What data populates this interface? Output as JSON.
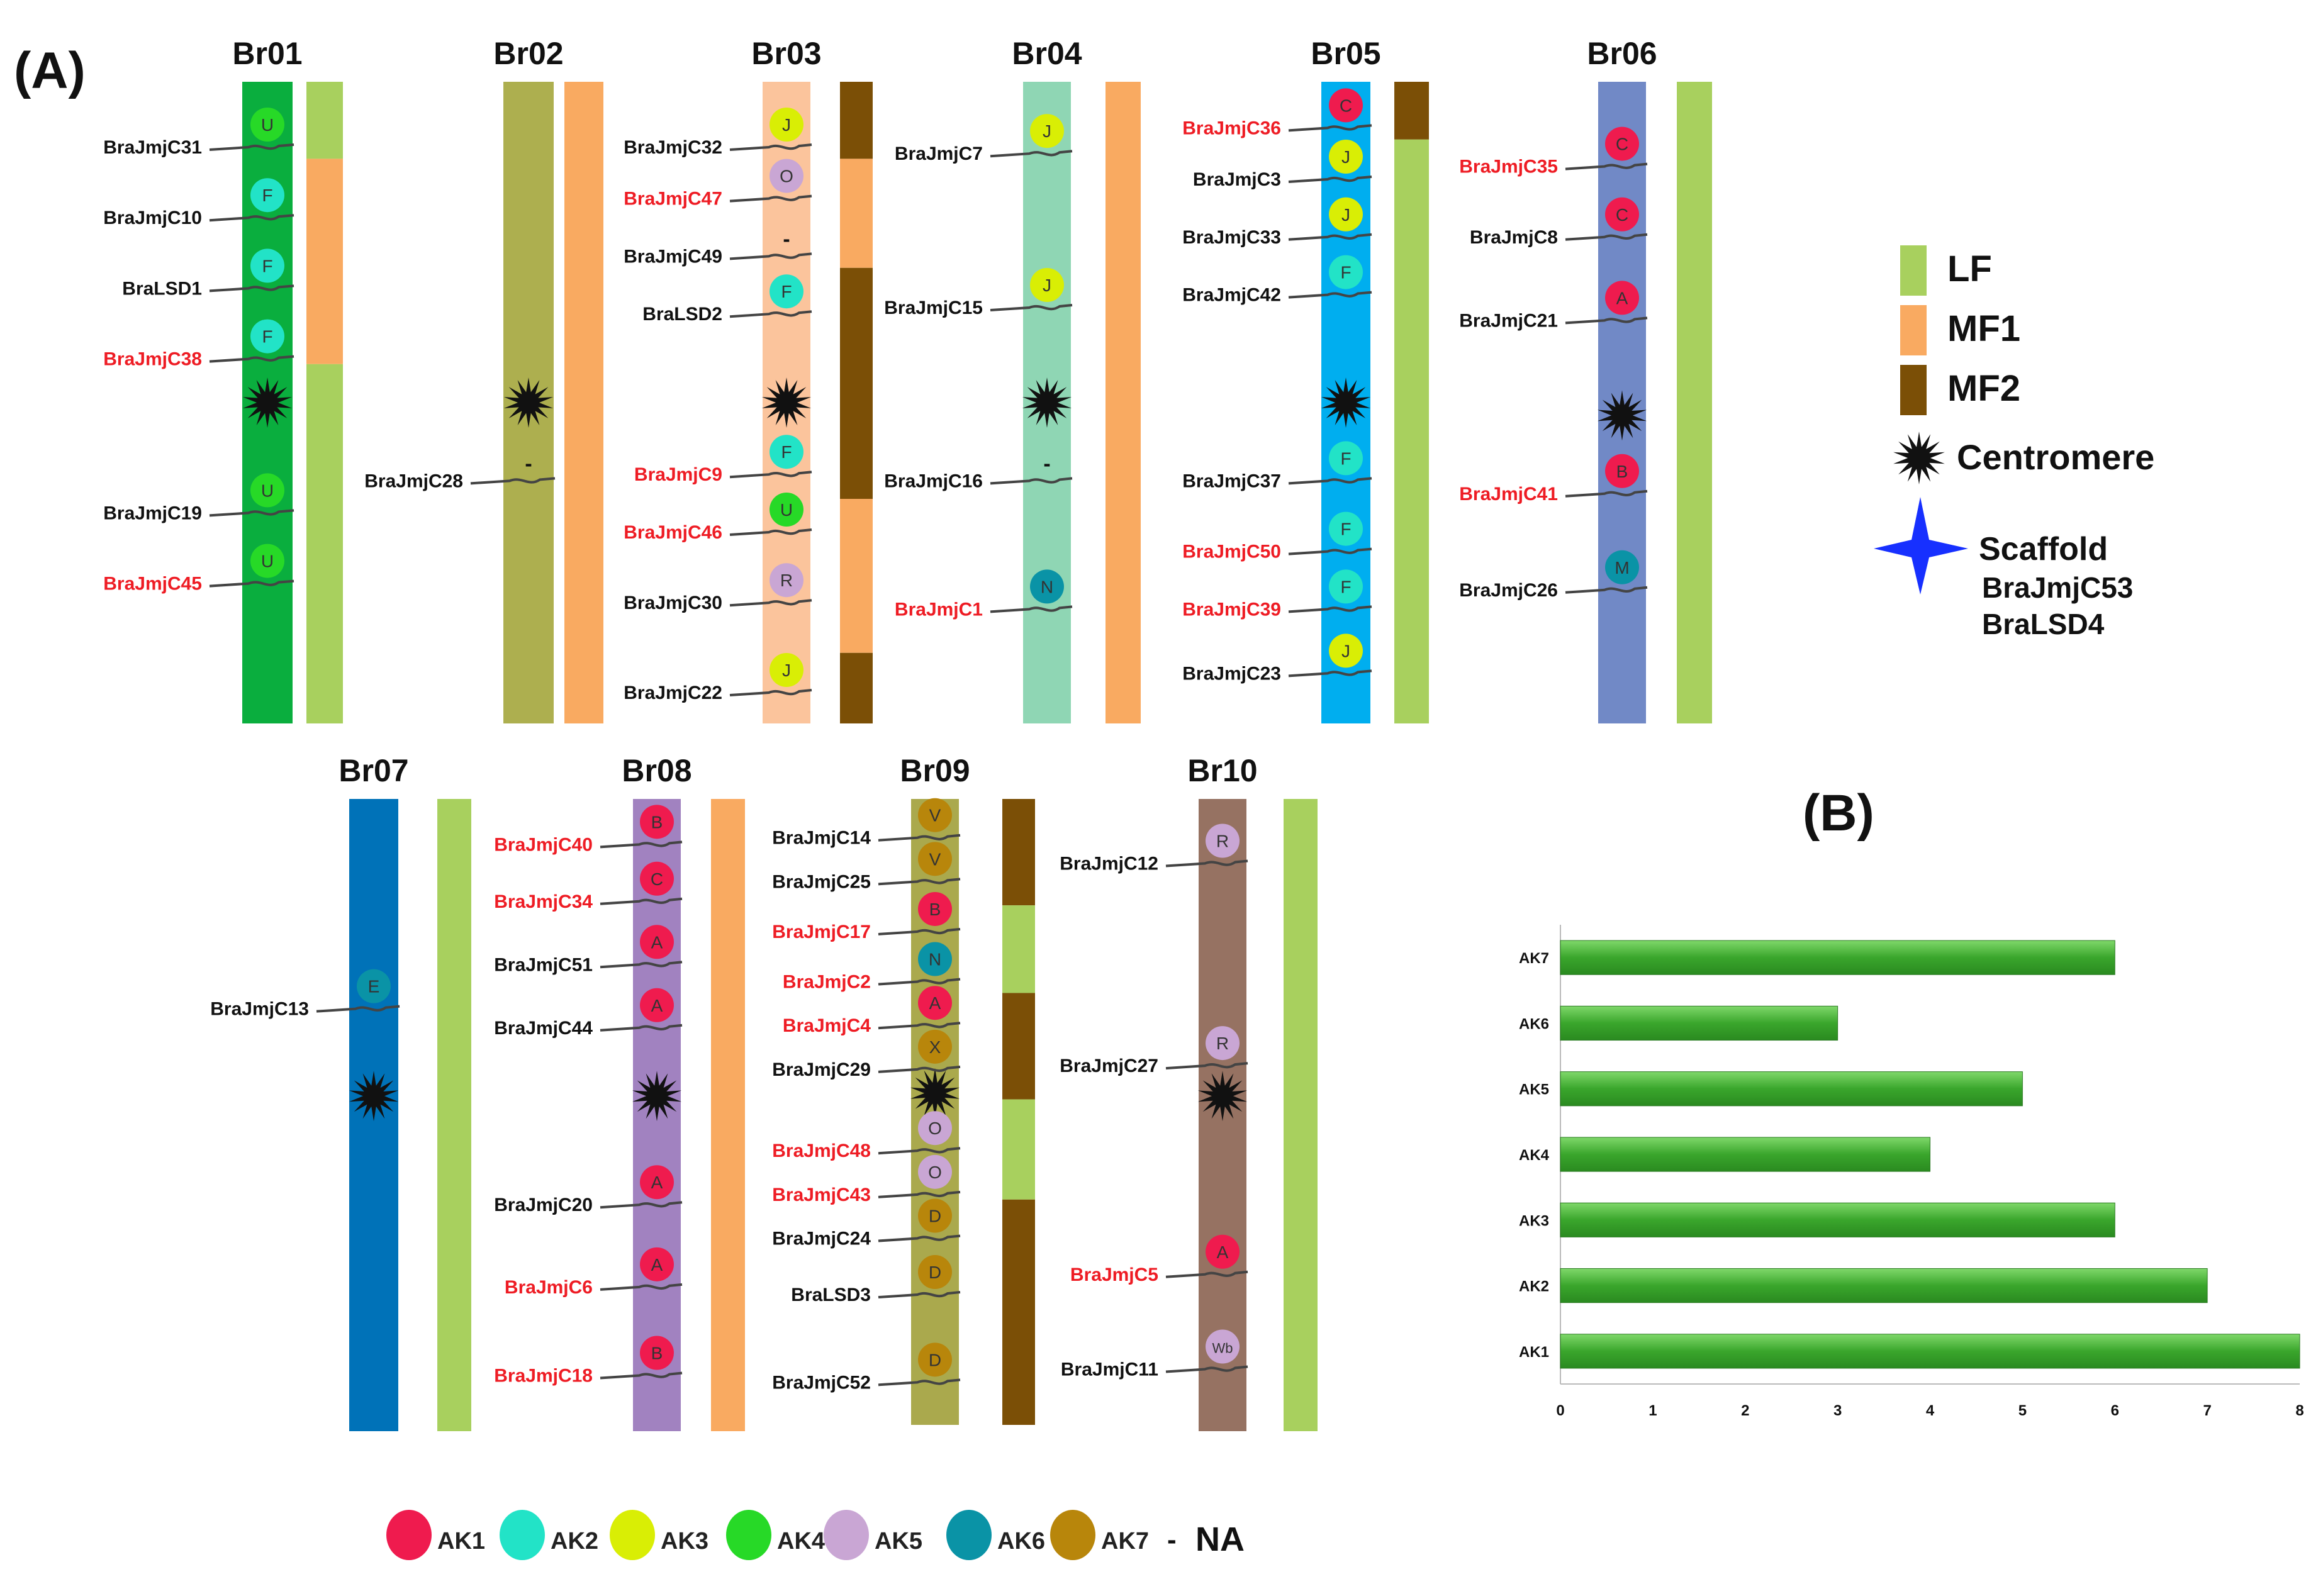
{
  "panel_a_label": "(A)",
  "panel_b_label": "(B)",
  "colors": {
    "LF": "#a8d05e",
    "MF1": "#f9aa61",
    "MF2": "#7b4f06",
    "AK1": "#ef1b4e",
    "AK2": "#22e3c7",
    "AK3": "#d9ee05",
    "AK4": "#27d927",
    "AK5": "#c9a6d4",
    "AK6": "#0a93a6",
    "AK7": "#b8860b",
    "red_label": "#ee1c24",
    "black_label": "#111111",
    "scaffold": "#1730ff",
    "bar_green": "#44a832"
  },
  "chromosomes": [
    {
      "name": "Br01",
      "color": "#0aae3e",
      "genes": [
        {
          "pos": 0.1,
          "label": "BraJmjC31",
          "red": false,
          "ak": "AK4",
          "letter": "U"
        },
        {
          "pos": 0.21,
          "label": "BraJmjC10",
          "red": false,
          "ak": "AK2",
          "letter": "F"
        },
        {
          "pos": 0.32,
          "label": "BraLSD1",
          "red": false,
          "ak": "AK2",
          "letter": "F"
        },
        {
          "pos": 0.43,
          "label": "BraJmjC38",
          "red": true,
          "ak": "AK2",
          "letter": "F"
        },
        {
          "pos": 0.67,
          "label": "BraJmjC19",
          "red": false,
          "ak": "AK4",
          "letter": "U"
        },
        {
          "pos": 0.78,
          "label": "BraJmjC45",
          "red": true,
          "ak": "AK4",
          "letter": "U"
        }
      ],
      "centromere": 0.5,
      "segments": [
        {
          "type": "LF",
          "from": 0,
          "to": 0.12
        },
        {
          "type": "MF1",
          "from": 0.12,
          "to": 0.44
        },
        {
          "type": "LF",
          "from": 0.44,
          "to": 1
        }
      ]
    },
    {
      "name": "Br02",
      "color": "#adaf4f",
      "genes": [
        {
          "pos": 0.62,
          "label": "BraJmjC28",
          "red": false,
          "ak": "NA",
          "letter": "-"
        }
      ],
      "centromere": 0.5,
      "segments": [
        {
          "type": "MF1",
          "from": 0,
          "to": 1
        }
      ]
    },
    {
      "name": "Br03",
      "color": "#fbc49c",
      "genes": [
        {
          "pos": 0.1,
          "label": "BraJmjC32",
          "red": false,
          "ak": "AK3",
          "letter": "J"
        },
        {
          "pos": 0.18,
          "label": "BraJmjC47",
          "red": true,
          "ak": "AK5",
          "letter": "O"
        },
        {
          "pos": 0.27,
          "label": "BraJmjC49",
          "red": false,
          "ak": "NA",
          "letter": "-"
        },
        {
          "pos": 0.36,
          "label": "BraLSD2",
          "red": false,
          "ak": "AK2",
          "letter": "F"
        },
        {
          "pos": 0.61,
          "label": "BraJmjC9",
          "red": true,
          "ak": "AK2",
          "letter": "F"
        },
        {
          "pos": 0.7,
          "label": "BraJmjC46",
          "red": true,
          "ak": "AK4",
          "letter": "U"
        },
        {
          "pos": 0.81,
          "label": "BraJmjC30",
          "red": false,
          "ak": "AK5",
          "letter": "R"
        },
        {
          "pos": 0.95,
          "label": "BraJmjC22",
          "red": false,
          "ak": "AK3",
          "letter": "J"
        }
      ],
      "centromere": 0.5,
      "segments": [
        {
          "type": "MF2",
          "from": 0,
          "to": 0.12
        },
        {
          "type": "MF1",
          "from": 0.12,
          "to": 0.29
        },
        {
          "type": "MF2",
          "from": 0.29,
          "to": 0.65
        },
        {
          "type": "MF1",
          "from": 0.65,
          "to": 0.89
        },
        {
          "type": "MF2",
          "from": 0.89,
          "to": 1
        }
      ]
    },
    {
      "name": "Br04",
      "color": "#8fd6b4",
      "genes": [
        {
          "pos": 0.11,
          "label": "BraJmjC7",
          "red": false,
          "ak": "AK3",
          "letter": "J"
        },
        {
          "pos": 0.35,
          "label": "BraJmjC15",
          "red": false,
          "ak": "AK3",
          "letter": "J"
        },
        {
          "pos": 0.62,
          "label": "BraJmjC16",
          "red": false,
          "ak": "NA",
          "letter": "-"
        },
        {
          "pos": 0.82,
          "label": "BraJmjC1",
          "red": true,
          "ak": "AK6",
          "letter": "N"
        }
      ],
      "centromere": 0.5,
      "segments": [
        {
          "type": "MF1",
          "from": 0,
          "to": 1
        }
      ]
    },
    {
      "name": "Br05",
      "color": "#00aeef",
      "genes": [
        {
          "pos": 0.07,
          "label": "BraJmjC36",
          "red": true,
          "ak": "AK1",
          "letter": "C"
        },
        {
          "pos": 0.15,
          "label": "BraJmjC3",
          "red": false,
          "ak": "AK3",
          "letter": "J"
        },
        {
          "pos": 0.24,
          "label": "BraJmjC33",
          "red": false,
          "ak": "AK3",
          "letter": "J"
        },
        {
          "pos": 0.33,
          "label": "BraJmjC42",
          "red": false,
          "ak": "AK2",
          "letter": "F"
        },
        {
          "pos": 0.62,
          "label": "BraJmjC37",
          "red": false,
          "ak": "AK2",
          "letter": "F"
        },
        {
          "pos": 0.73,
          "label": "BraJmjC50",
          "red": true,
          "ak": "AK2",
          "letter": "F"
        },
        {
          "pos": 0.82,
          "label": "BraJmjC39",
          "red": true,
          "ak": "AK2",
          "letter": "F"
        },
        {
          "pos": 0.92,
          "label": "BraJmjC23",
          "red": false,
          "ak": "AK3",
          "letter": "J"
        }
      ],
      "centromere": 0.5,
      "segments": [
        {
          "type": "MF2",
          "from": 0,
          "to": 0.09
        },
        {
          "type": "LF",
          "from": 0.09,
          "to": 1
        }
      ]
    },
    {
      "name": "Br06",
      "color": "#7189c6",
      "genes": [
        {
          "pos": 0.13,
          "label": "BraJmjC35",
          "red": true,
          "ak": "AK1",
          "letter": "C"
        },
        {
          "pos": 0.24,
          "label": "BraJmjC8",
          "red": false,
          "ak": "AK1",
          "letter": "C"
        },
        {
          "pos": 0.37,
          "label": "BraJmjC21",
          "red": false,
          "ak": "AK1",
          "letter": "A"
        },
        {
          "pos": 0.64,
          "label": "BraJmjC41",
          "red": true,
          "ak": "AK1",
          "letter": "B"
        },
        {
          "pos": 0.79,
          "label": "BraJmjC26",
          "red": false,
          "ak": "AK6",
          "letter": "M"
        }
      ],
      "centromere": 0.52,
      "segments": [
        {
          "type": "LF",
          "from": 0,
          "to": 1
        }
      ]
    },
    {
      "name": "Br07",
      "color": "#0072b8",
      "genes": [
        {
          "pos": 0.33,
          "label": "BraJmjC13",
          "red": false,
          "ak": "AK6",
          "letter": "E"
        }
      ],
      "centromere": 0.47,
      "segments": [
        {
          "type": "LF",
          "from": 0,
          "to": 1
        }
      ]
    },
    {
      "name": "Br08",
      "color": "#a182c0",
      "genes": [
        {
          "pos": 0.07,
          "label": "BraJmjC40",
          "red": true,
          "ak": "AK1",
          "letter": "B"
        },
        {
          "pos": 0.16,
          "label": "BraJmjC34",
          "red": true,
          "ak": "AK1",
          "letter": "C"
        },
        {
          "pos": 0.26,
          "label": "BraJmjC51",
          "red": false,
          "ak": "AK1",
          "letter": "A"
        },
        {
          "pos": 0.36,
          "label": "BraJmjC44",
          "red": false,
          "ak": "AK1",
          "letter": "A"
        },
        {
          "pos": 0.64,
          "label": "BraJmjC20",
          "red": false,
          "ak": "AK1",
          "letter": "A"
        },
        {
          "pos": 0.77,
          "label": "BraJmjC6",
          "red": true,
          "ak": "AK1",
          "letter": "A"
        },
        {
          "pos": 0.91,
          "label": "BraJmjC18",
          "red": true,
          "ak": "AK1",
          "letter": "B"
        }
      ],
      "centromere": 0.47,
      "segments": [
        {
          "type": "MF1",
          "from": 0,
          "to": 1
        }
      ]
    },
    {
      "name": "Br09",
      "color": "#aaa94d",
      "genes": [
        {
          "pos": 0.06,
          "label": "BraJmjC14",
          "red": false,
          "ak": "AK7",
          "letter": "V"
        },
        {
          "pos": 0.13,
          "label": "BraJmjC25",
          "red": false,
          "ak": "AK7",
          "letter": "V"
        },
        {
          "pos": 0.21,
          "label": "BraJmjC17",
          "red": true,
          "ak": "AK1",
          "letter": "B"
        },
        {
          "pos": 0.29,
          "label": "BraJmjC2",
          "red": true,
          "ak": "AK6",
          "letter": "N"
        },
        {
          "pos": 0.36,
          "label": "BraJmjC4",
          "red": true,
          "ak": "AK1",
          "letter": "A"
        },
        {
          "pos": 0.43,
          "label": "BraJmjC29",
          "red": false,
          "ak": "AK7",
          "letter": "X"
        },
        {
          "pos": 0.56,
          "label": "BraJmjC48",
          "red": true,
          "ak": "AK5",
          "letter": "O"
        },
        {
          "pos": 0.63,
          "label": "BraJmjC43",
          "red": true,
          "ak": "AK5",
          "letter": "O"
        },
        {
          "pos": 0.7,
          "label": "BraJmjC24",
          "red": false,
          "ak": "AK7",
          "letter": "D"
        },
        {
          "pos": 0.79,
          "label": "BraLSD3",
          "red": false,
          "ak": "AK7",
          "letter": "D"
        },
        {
          "pos": 0.93,
          "label": "BraJmjC52",
          "red": false,
          "ak": "AK7",
          "letter": "D"
        }
      ],
      "centromere": 0.47,
      "segments": [
        {
          "type": "MF2",
          "from": 0,
          "to": 0.17
        },
        {
          "type": "LF",
          "from": 0.17,
          "to": 0.31
        },
        {
          "type": "MF2",
          "from": 0.31,
          "to": 0.48
        },
        {
          "type": "LF",
          "from": 0.48,
          "to": 0.64
        },
        {
          "type": "MF2",
          "from": 0.64,
          "to": 1
        }
      ]
    },
    {
      "name": "Br10",
      "color": "#967262",
      "genes": [
        {
          "pos": 0.1,
          "label": "BraJmjC12",
          "red": false,
          "ak": "AK5",
          "letter": "R"
        },
        {
          "pos": 0.42,
          "label": "BraJmjC27",
          "red": false,
          "ak": "AK5",
          "letter": "R"
        },
        {
          "pos": 0.75,
          "label": "BraJmjC5",
          "red": true,
          "ak": "AK1",
          "letter": "A"
        },
        {
          "pos": 0.9,
          "label": "BraJmjC11",
          "red": false,
          "ak": "AK5",
          "letter": "Wb"
        }
      ],
      "centromere": 0.47,
      "segments": [
        {
          "type": "LF",
          "from": 0,
          "to": 1
        }
      ]
    }
  ],
  "legend_types": [
    {
      "key": "LF",
      "label": "LF"
    },
    {
      "key": "MF1",
      "label": "MF1"
    },
    {
      "key": "MF2",
      "label": "MF2"
    }
  ],
  "legend_centromere_label": "Centromere",
  "legend_scaffold_label": "Scaffold",
  "scaffold_genes": [
    "BraJmjC53",
    "BraLSD4"
  ],
  "ak_legend": [
    {
      "key": "AK1",
      "label": "AK1"
    },
    {
      "key": "AK2",
      "label": "AK2"
    },
    {
      "key": "AK3",
      "label": "AK3"
    },
    {
      "key": "AK4",
      "label": "AK4"
    },
    {
      "key": "AK5",
      "label": "AK5"
    },
    {
      "key": "AK6",
      "label": "AK6"
    },
    {
      "key": "AK7",
      "label": "AK7"
    }
  ],
  "na_dash": "-",
  "na_label": "NA",
  "chart_data": {
    "type": "bar",
    "orientation": "horizontal",
    "categories": [
      "AK7",
      "AK6",
      "AK5",
      "AK4",
      "AK3",
      "AK2",
      "AK1"
    ],
    "values": [
      6,
      3,
      5,
      4,
      6,
      7,
      8
    ],
    "xlim": [
      0,
      8
    ],
    "xticks": [
      0,
      1,
      2,
      3,
      4,
      5,
      6,
      7,
      8
    ],
    "title": "",
    "xlabel": "",
    "ylabel": ""
  }
}
